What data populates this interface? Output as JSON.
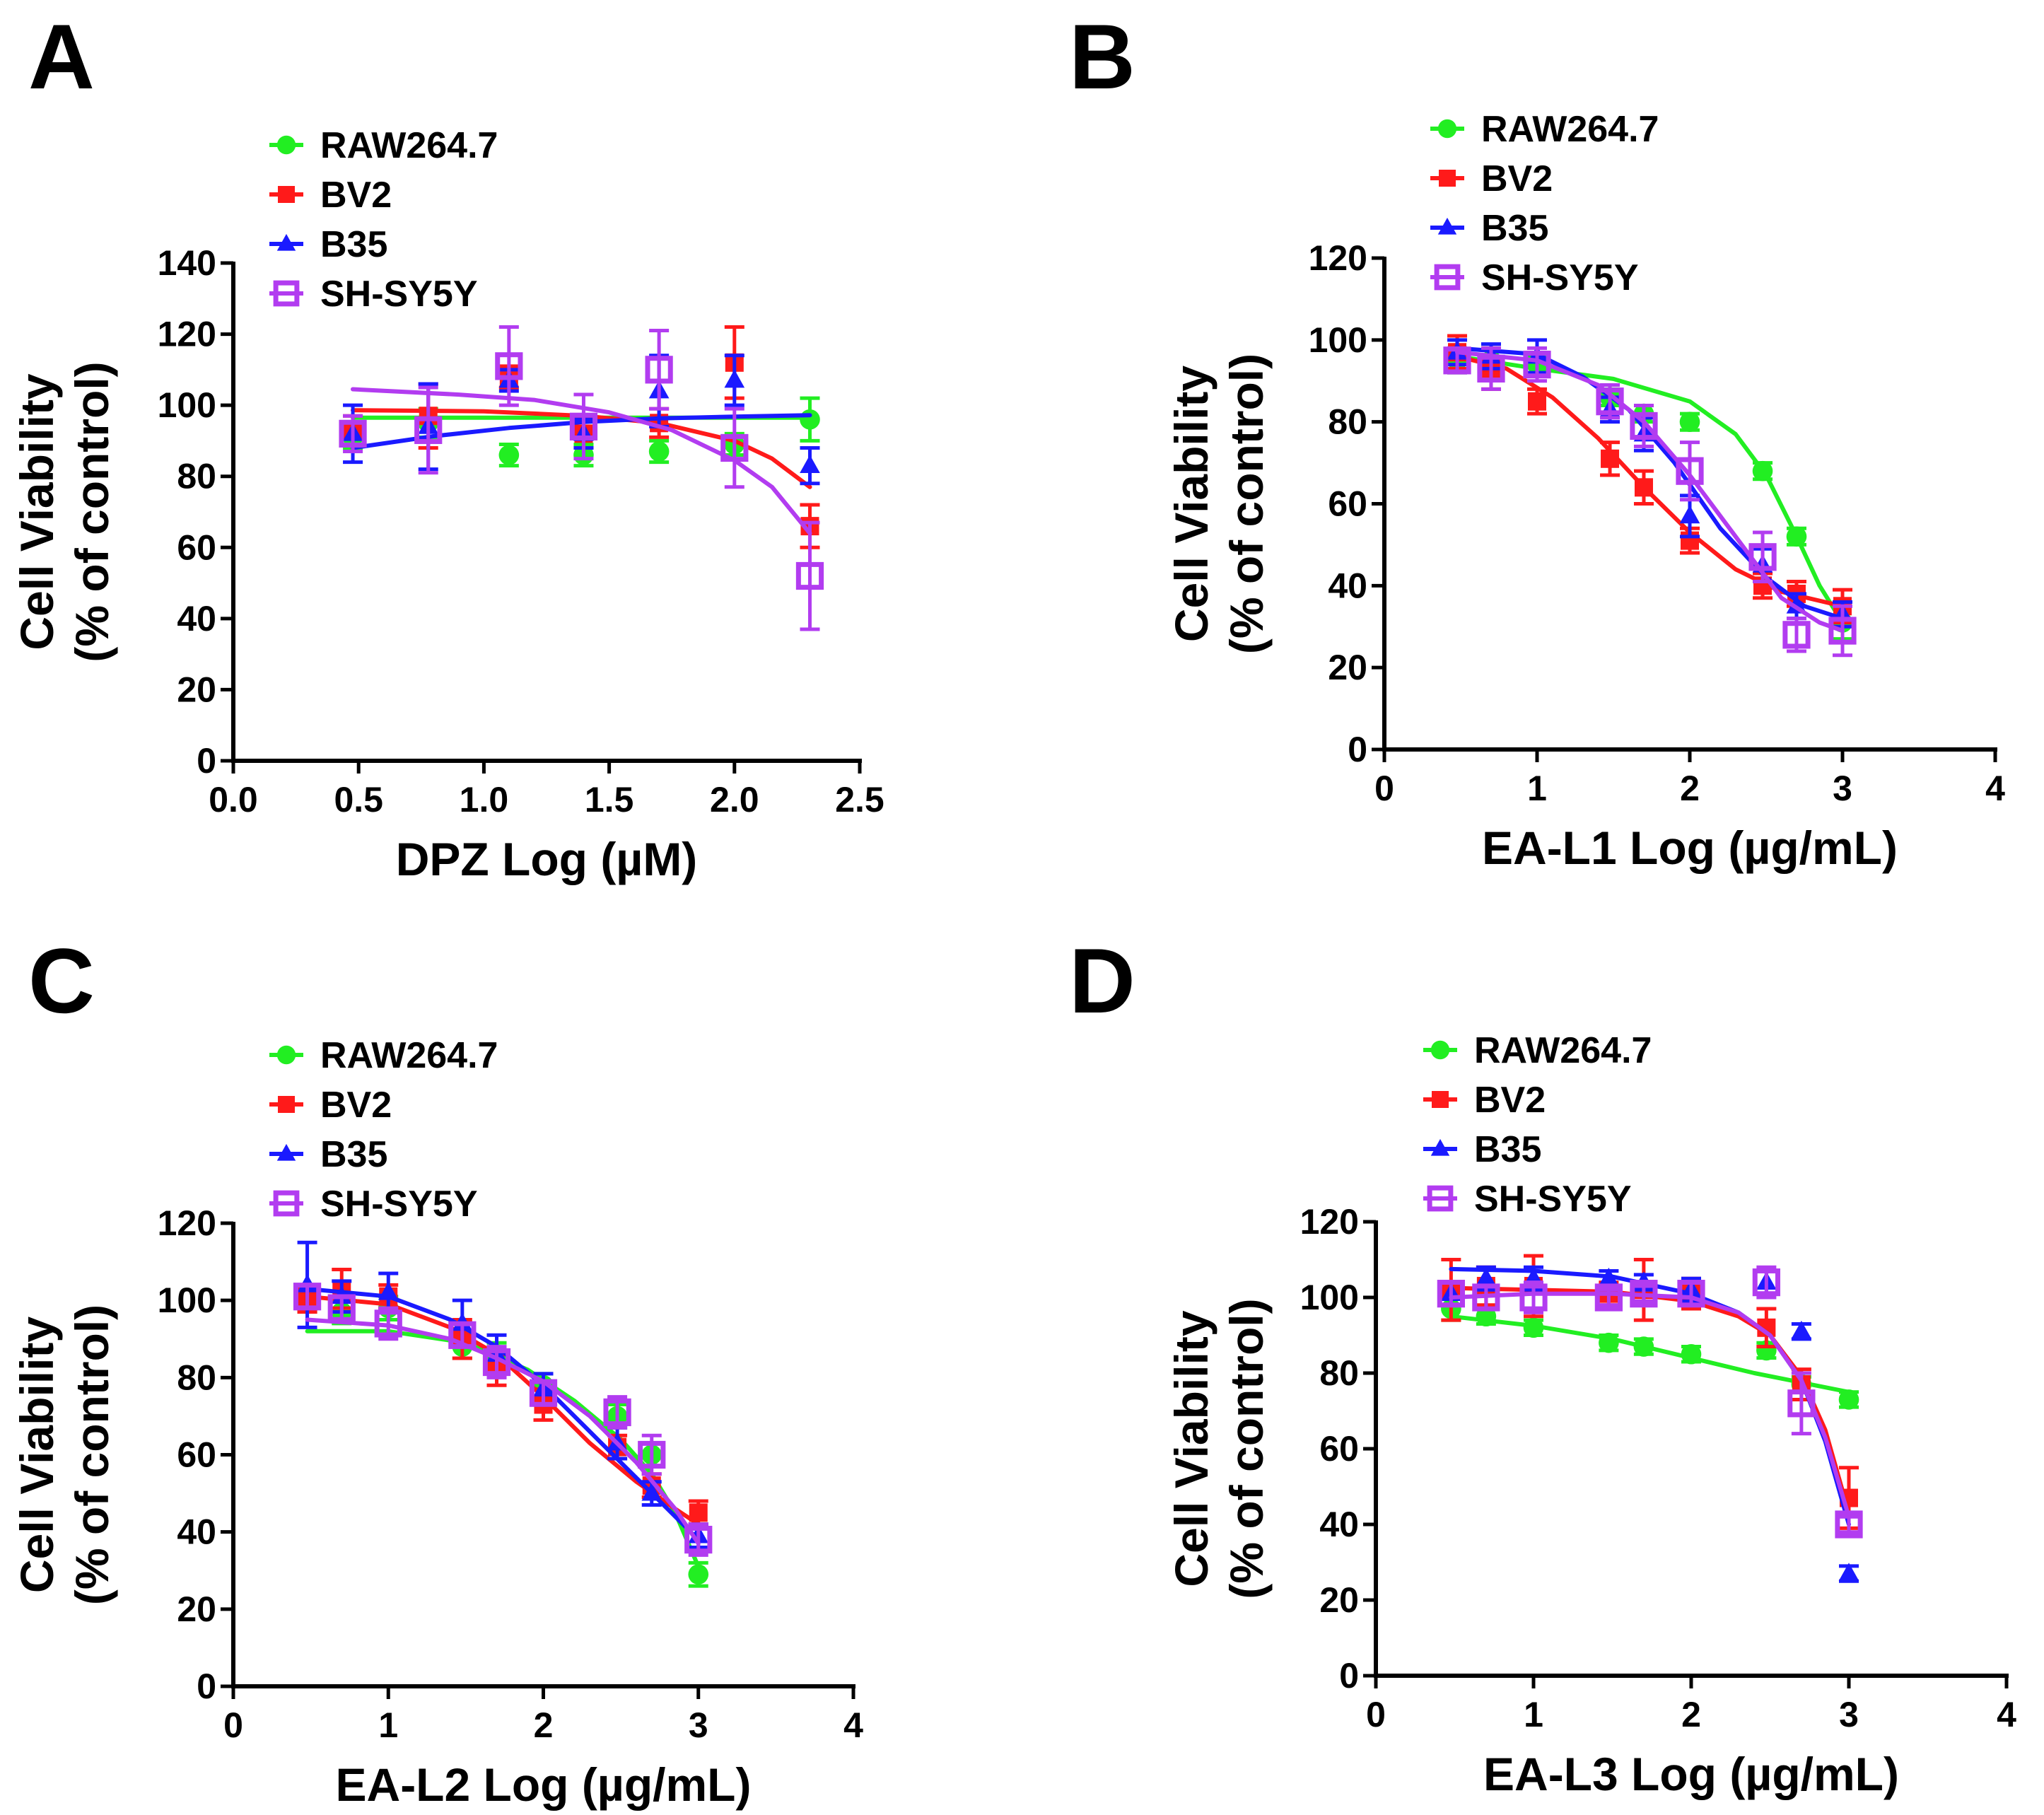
{
  "series_colors": {
    "RAW264.7": "#22ee22",
    "BV2": "#ff1a1a",
    "B35": "#1a1aff",
    "SH-SY5Y": "#b23cf0"
  },
  "chart_data": [
    {
      "panel": "A",
      "type": "scatter",
      "title": "",
      "xlabel": "DPZ Log (µM)",
      "ylabel": "Cell Viability",
      "ylabel2": "(% of control)",
      "xlim": [
        0,
        2.5
      ],
      "ylim": [
        0,
        140
      ],
      "xticks": [
        0.0,
        0.5,
        1.0,
        1.5,
        2.0,
        2.5
      ],
      "xtick_labels": [
        "0.0",
        "0.5",
        "1.0",
        "1.5",
        "2.0",
        "2.5"
      ],
      "yticks": [
        0,
        20,
        40,
        60,
        80,
        100,
        120,
        140
      ],
      "ytick_labels": [
        "0",
        "20",
        "40",
        "60",
        "80",
        "100",
        "120",
        "140"
      ],
      "legend": [
        "RAW264.7",
        "BV2",
        "B35",
        "SH-SY5Y"
      ],
      "x": [
        0.477,
        0.778,
        1.1,
        1.398,
        1.699,
        2.0,
        2.301
      ],
      "series": [
        {
          "name": "RAW264.7",
          "marker": "circle",
          "values": [
            91,
            95,
            86,
            86,
            87,
            89,
            96
          ],
          "errors": [
            3,
            4,
            3,
            3,
            3,
            3,
            6
          ],
          "fit": [
            [
              0.477,
              96.5
            ],
            [
              2.301,
              96.5
            ]
          ]
        },
        {
          "name": "BV2",
          "marker": "square",
          "values": [
            93,
            97,
            108,
            92,
            95,
            112,
            66
          ],
          "errors": [
            4,
            9,
            3,
            4,
            4,
            10,
            6
          ],
          "fit": [
            [
              0.477,
              98.6
            ],
            [
              1.0,
              98.3
            ],
            [
              1.4,
              97
            ],
            [
              1.7,
              95
            ],
            [
              2.0,
              90
            ],
            [
              2.15,
              85
            ],
            [
              2.301,
              77
            ]
          ]
        },
        {
          "name": "B35",
          "marker": "triangle",
          "values": [
            92,
            94,
            107,
            92,
            104,
            107,
            83
          ],
          "errors": [
            8,
            12,
            3,
            4,
            10,
            7,
            5
          ],
          "fit": [
            [
              0.477,
              88
            ],
            [
              0.8,
              91.3
            ],
            [
              1.1,
              93.6
            ],
            [
              1.4,
              95.3
            ],
            [
              1.7,
              96.3
            ],
            [
              2.0,
              96.8
            ],
            [
              2.301,
              97.2
            ]
          ]
        },
        {
          "name": "SH-SY5Y",
          "marker": "open-square",
          "values": [
            92,
            93,
            111,
            94,
            110,
            88,
            52
          ],
          "errors": [
            5,
            12,
            11,
            9,
            11,
            11,
            15
          ],
          "fit": [
            [
              0.477,
              104.5
            ],
            [
              0.9,
              103
            ],
            [
              1.2,
              101.5
            ],
            [
              1.5,
              98
            ],
            [
              1.75,
              93
            ],
            [
              2.0,
              84.5
            ],
            [
              2.15,
              77
            ],
            [
              2.301,
              64
            ]
          ]
        }
      ]
    },
    {
      "panel": "B",
      "type": "scatter",
      "title": "",
      "xlabel": "EA-L1 Log (µg/mL)",
      "ylabel": "Cell Viability",
      "ylabel2": "(% of control)",
      "xlim": [
        0,
        4
      ],
      "ylim": [
        0,
        120
      ],
      "xticks": [
        0,
        1,
        2,
        3,
        4
      ],
      "xtick_labels": [
        "0",
        "1",
        "2",
        "3",
        "4"
      ],
      "yticks": [
        0,
        20,
        40,
        60,
        80,
        100,
        120
      ],
      "ytick_labels": [
        "0",
        "20",
        "40",
        "60",
        "80",
        "100",
        "120"
      ],
      "legend": [
        "RAW264.7",
        "BV2",
        "B35",
        "SH-SY5Y"
      ],
      "x": [
        0.477,
        0.699,
        1.0,
        1.477,
        1.699,
        2.0,
        2.477,
        2.699,
        3.0
      ],
      "series": [
        {
          "name": "RAW264.7",
          "marker": "circle",
          "values": [
            95,
            95,
            94,
            86,
            82,
            80,
            68,
            52,
            31
          ],
          "errors": [
            3,
            3,
            2,
            2,
            2,
            2,
            2,
            2,
            4
          ],
          "fit": [
            [
              0.477,
              96
            ],
            [
              1.0,
              93
            ],
            [
              1.5,
              90.5
            ],
            [
              2.0,
              85
            ],
            [
              2.3,
              77
            ],
            [
              2.5,
              67
            ],
            [
              2.7,
              52
            ],
            [
              2.85,
              40
            ],
            [
              3.0,
              31
            ]
          ]
        },
        {
          "name": "BV2",
          "marker": "square",
          "values": [
            97,
            93,
            85,
            71,
            64,
            51,
            40,
            38,
            35
          ],
          "errors": [
            4,
            5,
            3,
            4,
            4,
            3,
            3,
            3,
            4
          ],
          "fit": [
            [
              0.477,
              96
            ],
            [
              0.8,
              93
            ],
            [
              1.1,
              86
            ],
            [
              1.4,
              76
            ],
            [
              1.7,
              64
            ],
            [
              2.0,
              53
            ],
            [
              2.3,
              44
            ],
            [
              2.6,
              38.5
            ],
            [
              3.0,
              35
            ]
          ]
        },
        {
          "name": "B35",
          "marker": "triangle",
          "values": [
            97,
            96,
            96,
            83,
            77,
            57,
            45,
            35,
            33
          ],
          "errors": [
            3,
            3,
            4,
            3,
            4,
            5,
            4,
            3,
            3
          ],
          "fit": [
            [
              0.477,
              98
            ],
            [
              1.0,
              96.5
            ],
            [
              1.3,
              91
            ],
            [
              1.6,
              83
            ],
            [
              1.9,
              70
            ],
            [
              2.2,
              54
            ],
            [
              2.5,
              42
            ],
            [
              2.75,
              35
            ],
            [
              3.0,
              32
            ]
          ]
        },
        {
          "name": "SH-SY5Y",
          "marker": "open-square",
          "values": [
            95,
            93,
            94,
            85,
            79,
            68,
            47,
            28,
            29
          ],
          "errors": [
            3,
            5,
            4,
            4,
            5,
            7,
            6,
            4,
            6
          ],
          "fit": [
            [
              0.477,
              97
            ],
            [
              1.0,
              95
            ],
            [
              1.4,
              89
            ],
            [
              1.7,
              80
            ],
            [
              2.0,
              67
            ],
            [
              2.3,
              52
            ],
            [
              2.6,
              37
            ],
            [
              2.85,
              31
            ],
            [
              3.0,
              29
            ]
          ]
        }
      ]
    },
    {
      "panel": "C",
      "type": "scatter",
      "title": "",
      "xlabel": "EA-L2 Log (µg/mL)",
      "ylabel": "Cell Viability",
      "ylabel2": "(% of control)",
      "xlim": [
        0,
        4
      ],
      "ylim": [
        0,
        120
      ],
      "xticks": [
        0,
        1,
        2,
        3,
        4
      ],
      "xtick_labels": [
        "0",
        "1",
        "2",
        "3",
        "4"
      ],
      "yticks": [
        0,
        20,
        40,
        60,
        80,
        100,
        120
      ],
      "ytick_labels": [
        "0",
        "20",
        "40",
        "60",
        "80",
        "100",
        "120"
      ],
      "legend": [
        "RAW264.7",
        "BV2",
        "B35",
        "SH-SY5Y"
      ],
      "x": [
        0.477,
        0.699,
        1.0,
        1.477,
        1.699,
        2.0,
        2.477,
        2.699,
        3.0
      ],
      "series": [
        {
          "name": "RAW264.7",
          "marker": "circle",
          "values": [
            100,
            97,
            98,
            88,
            86,
            78,
            70,
            60,
            29
          ],
          "errors": [
            3,
            3,
            3,
            3,
            3,
            3,
            3,
            3,
            3
          ],
          "fit": [
            [
              0.477,
              92
            ],
            [
              1.0,
              92
            ],
            [
              1.5,
              89
            ],
            [
              1.9,
              82
            ],
            [
              2.2,
              74
            ],
            [
              2.5,
              64
            ],
            [
              2.7,
              55
            ],
            [
              2.85,
              45
            ],
            [
              3.0,
              31
            ]
          ]
        },
        {
          "name": "BV2",
          "marker": "square",
          "values": [
            100,
            103,
            101,
            90,
            82,
            73,
            62,
            52,
            45
          ],
          "errors": [
            3,
            5,
            3,
            5,
            4,
            4,
            3,
            3,
            3
          ],
          "fit": [
            [
              0.477,
              101
            ],
            [
              1.0,
              99
            ],
            [
              1.4,
              93
            ],
            [
              1.7,
              86
            ],
            [
              2.0,
              75
            ],
            [
              2.3,
              63
            ],
            [
              2.6,
              53
            ],
            [
              2.85,
              46
            ],
            [
              3.0,
              42
            ]
          ]
        },
        {
          "name": "B35",
          "marker": "triangle",
          "values": [
            104,
            101,
            102,
            94,
            86,
            77,
            63,
            50,
            39
          ],
          "errors": [
            11,
            4,
            5,
            6,
            5,
            4,
            4,
            3,
            3
          ],
          "fit": [
            [
              0.477,
              103
            ],
            [
              1.0,
              101
            ],
            [
              1.4,
              95
            ],
            [
              1.7,
              88
            ],
            [
              2.0,
              78
            ],
            [
              2.3,
              66
            ],
            [
              2.6,
              54
            ],
            [
              2.85,
              44
            ],
            [
              3.0,
              38
            ]
          ]
        },
        {
          "name": "SH-SY5Y",
          "marker": "open-square",
          "values": [
            101,
            98,
            94,
            91,
            84,
            76,
            71,
            60,
            38
          ],
          "errors": [
            3,
            3,
            4,
            3,
            4,
            3,
            4,
            5,
            4
          ],
          "fit": [
            [
              0.477,
              95
            ],
            [
              1.0,
              93.5
            ],
            [
              1.4,
              90
            ],
            [
              1.7,
              85
            ],
            [
              2.0,
              79
            ],
            [
              2.3,
              70
            ],
            [
              2.6,
              58
            ],
            [
              2.85,
              46
            ],
            [
              3.0,
              37
            ]
          ]
        }
      ]
    },
    {
      "panel": "D",
      "type": "scatter",
      "title": "",
      "xlabel": "EA-L3 Log (µg/mL)",
      "ylabel": "Cell Viability",
      "ylabel2": "(% of control)",
      "xlim": [
        0,
        4
      ],
      "ylim": [
        0,
        120
      ],
      "xticks": [
        0,
        1,
        2,
        3,
        4
      ],
      "xtick_labels": [
        "0",
        "1",
        "2",
        "3",
        "4"
      ],
      "yticks": [
        0,
        20,
        40,
        60,
        80,
        100,
        120
      ],
      "ytick_labels": [
        "0",
        "20",
        "40",
        "60",
        "80",
        "100",
        "120"
      ],
      "legend": [
        "RAW264.7",
        "BV2",
        "B35",
        "SH-SY5Y"
      ],
      "x": [
        0.477,
        0.699,
        1.0,
        1.477,
        1.699,
        2.0,
        2.477,
        2.699,
        3.0
      ],
      "series": [
        {
          "name": "RAW264.7",
          "marker": "circle",
          "values": [
            97,
            95,
            92,
            88,
            87,
            85,
            86,
            77,
            73
          ],
          "errors": [
            3,
            2,
            2,
            2,
            2,
            2,
            2,
            2,
            2
          ],
          "fit": [
            [
              0.477,
              95
            ],
            [
              1.0,
              92.5
            ],
            [
              1.5,
              89
            ],
            [
              2.0,
              84
            ],
            [
              2.4,
              80
            ],
            [
              2.7,
              77.5
            ],
            [
              3.0,
              75
            ]
          ]
        },
        {
          "name": "BV2",
          "marker": "square",
          "values": [
            102,
            103,
            103,
            101,
            102,
            101,
            92,
            77,
            47
          ],
          "errors": [
            8,
            5,
            8,
            3,
            8,
            4,
            5,
            4,
            8
          ],
          "fit": [
            [
              0.477,
              102.5
            ],
            [
              1.0,
              102
            ],
            [
              1.5,
              101.5
            ],
            [
              2.0,
              99
            ],
            [
              2.3,
              95
            ],
            [
              2.5,
              90
            ],
            [
              2.7,
              79
            ],
            [
              2.85,
              65
            ],
            [
              3.0,
              43
            ]
          ]
        },
        {
          "name": "B35",
          "marker": "triangle",
          "values": [
            101,
            105,
            105,
            105,
            104,
            102,
            104,
            91,
            27
          ],
          "errors": [
            3,
            3,
            3,
            2,
            2,
            3,
            3,
            2,
            2
          ],
          "fit": [
            [
              0.477,
              107.5
            ],
            [
              1.0,
              107
            ],
            [
              1.5,
              105.5
            ],
            [
              2.0,
              101
            ],
            [
              2.3,
              96
            ],
            [
              2.5,
              90
            ],
            [
              2.7,
              78
            ],
            [
              2.85,
              62
            ],
            [
              3.0,
              40
            ]
          ]
        },
        {
          "name": "SH-SY5Y",
          "marker": "open-square",
          "values": [
            101,
            100,
            100,
            100,
            101,
            101,
            104,
            72,
            40
          ],
          "errors": [
            3,
            3,
            4,
            2,
            2,
            3,
            4,
            8,
            2
          ],
          "fit": [
            [
              0.477,
              100
            ],
            [
              1.0,
              101
            ],
            [
              1.5,
              101
            ],
            [
              2.0,
              100
            ],
            [
              2.3,
              96
            ],
            [
              2.5,
              90
            ],
            [
              2.7,
              78
            ],
            [
              2.85,
              63
            ],
            [
              3.0,
              42
            ]
          ]
        }
      ]
    }
  ]
}
